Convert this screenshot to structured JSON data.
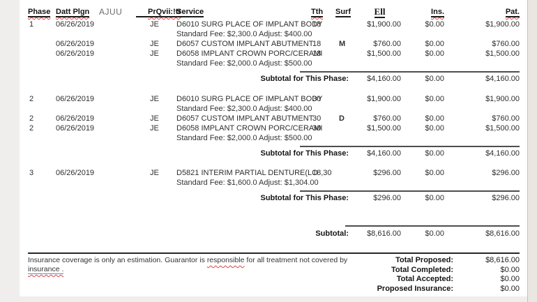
{
  "header": {
    "phase": "Phase",
    "date": "Datt Plgn",
    "ajuu": "AJUU",
    "prov": "PrQvii:!tr",
    "service": "Service",
    "tth": "Tth",
    "surf": "Surf",
    "fee": "Ell",
    "ins": "Ins.",
    "pat": "Pat."
  },
  "phases": [
    {
      "rows": [
        {
          "phase": "1",
          "date": "06/26/2019",
          "prov": "JE",
          "service": "D6010 SURG PLACE OF IMPLANT BODY",
          "tth": "18",
          "fee": "$1,900.00",
          "ins": "$0.00",
          "pat": "$1,900.00"
        },
        {
          "note": "Standard Fee: $2,300.0 Adjust: $400.00"
        },
        {
          "date": "06/26/2019",
          "prov": "JE",
          "service": "D6057 CUSTOM IMPLANT ABUTMENT",
          "tth": "18",
          "surf": "M",
          "fee": "$760.00",
          "ins": "$0.00",
          "pat": "$760.00"
        },
        {
          "date": "06/26/2019",
          "prov": "JE",
          "service": "D6058 IMPLANT CROWN PORC/CERAMI",
          "tth": "18",
          "fee": "$1,500.00",
          "ins": "$0.00",
          "pat": "$1,500.00"
        },
        {
          "note": "Standard Fee: $2,000.0 Adjust: $500.00"
        }
      ],
      "subtotal": {
        "label": "Subtotal for This Phase:",
        "fee": "$4,160.00",
        "ins": "$0.00",
        "pat": "$4,160.00"
      }
    },
    {
      "rows": [
        {
          "phase": "2",
          "date": "06/26/2019",
          "prov": "JE",
          "service": "D6010 SURG PLACE OF IMPLANT BODY",
          "tth": "30",
          "fee": "$1,900.00",
          "ins": "$0.00",
          "pat": "$1,900.00"
        },
        {
          "note": "Standard Fee: $2,300.0 Adjust: $400.00"
        },
        {
          "phase": "2",
          "date": "06/26/2019",
          "prov": "JE",
          "service": "D6057 CUSTOM IMPLANT ABUTMENT",
          "tth": "30",
          "surf": "D",
          "fee": "$760.00",
          "ins": "$0.00",
          "pat": "$760.00"
        },
        {
          "phase": "2",
          "date": "06/26/2019",
          "prov": "JE",
          "service": "D6058 IMPLANT CROWN PORC/CERAMI",
          "tth": "30",
          "fee": "$1,500.00",
          "ins": "$0.00",
          "pat": "$1,500.00"
        },
        {
          "note": "Standard Fee: $2,000.0 Adjust: $500.00"
        }
      ],
      "subtotal": {
        "label": "Subtotal for This Phase:",
        "fee": "$4,160.00",
        "ins": "$0.00",
        "pat": "$4,160.00"
      }
    },
    {
      "rows": [
        {
          "phase": "3",
          "date": "06/26/2019",
          "prov": "JE",
          "service": "D5821  INTERIM PARTIAL DENTURE(LO",
          "tth": "18,30",
          "fee": "$296.00",
          "ins": "$0.00",
          "pat": "$296.00"
        },
        {
          "note": "Standard Fee: $1,600.0 Adjust: $1,304.00"
        }
      ],
      "subtotal": {
        "label": "Subtotal for This Phase:",
        "fee": "$296.00",
        "ins": "$0.00",
        "pat": "$296.00"
      }
    }
  ],
  "grand_subtotal": {
    "label": "Subtotal:",
    "fee": "$8,616.00",
    "ins": "$0.00",
    "pat": "$8,616.00"
  },
  "footer": {
    "note_part1": "Insurance coverage is only an estimation. Guarantor is ",
    "note_word_responsible": "responsible",
    "note_part2": " for all treatment not covered by",
    "note_link": "insurance .",
    "totals": [
      {
        "label": "Total Proposed:",
        "value": "$8,616.00"
      },
      {
        "label": "Total Completed:",
        "value": "$0.00"
      },
      {
        "label": "Total Accepted:",
        "value": "$0.00"
      },
      {
        "label": "Proposed Insurance:",
        "value": "$0.00"
      }
    ]
  },
  "colors": {
    "squiggle_red": "#e04040",
    "link_underline_blue": "#5b8fd0"
  }
}
